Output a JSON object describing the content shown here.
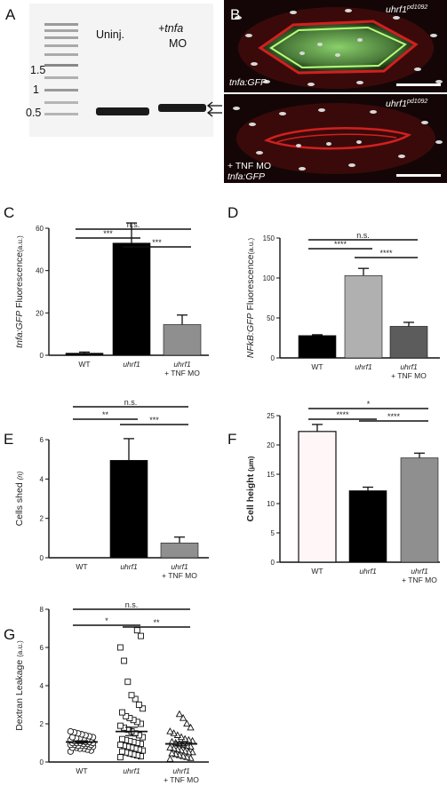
{
  "panels": {
    "A": {
      "label": "A",
      "lanes": [
        "Uninj.",
        "+tnfa",
        "MO"
      ],
      "ladder_labels": [
        "1.5",
        "1",
        "0.5"
      ]
    },
    "B": {
      "label": "B",
      "top_genotype": "uhrf1",
      "top_superscript": "pd1092",
      "top_reporter": "tnfa:GFP",
      "bottom_genotype": "uhrf1",
      "bottom_superscript": "pd1092",
      "bottom_treatment": "+ TNF MO",
      "bottom_reporter": "tnfa:GFP"
    }
  },
  "chart_data": [
    {
      "panel": "C",
      "type": "bar",
      "categories": [
        "WT",
        "uhrf1",
        "uhrf1"
      ],
      "category_sub": [
        "",
        "",
        "+ TNF MO"
      ],
      "values": [
        1,
        53,
        14.5
      ],
      "errors": [
        0.5,
        9.5,
        4.5
      ],
      "colors": [
        "#000000",
        "#000000",
        "#8f8f8f"
      ],
      "ylabel_italic": "tnfa:GFP",
      "ylabel_rest": " Fluorescence",
      "ylabel_unit": "(a.u.)",
      "ylim": [
        0,
        60
      ],
      "yticks": [
        0,
        20,
        40,
        60
      ],
      "sig": [
        "***",
        "***",
        "n.s."
      ]
    },
    {
      "panel": "D",
      "type": "bar",
      "categories": [
        "WT",
        "uhrf1",
        "uhrf1"
      ],
      "category_sub": [
        "",
        "",
        "+ TNF MO"
      ],
      "values": [
        28,
        103,
        39.5
      ],
      "errors": [
        1,
        9,
        5
      ],
      "colors": [
        "#000000",
        "#b0b0b0",
        "#5c5c5c"
      ],
      "ylabel_italic": "NFkB:GFP",
      "ylabel_rest": " Fluorescence",
      "ylabel_unit": "(a.u.)",
      "ylim": [
        0,
        150
      ],
      "yticks": [
        0,
        50,
        100,
        150
      ],
      "sig": [
        "****",
        "****",
        "n.s."
      ]
    },
    {
      "panel": "E",
      "type": "bar",
      "categories": [
        "WT",
        "uhrf1",
        "uhrf1"
      ],
      "category_sub": [
        "",
        "",
        "+ TNF MO"
      ],
      "values": [
        0,
        4.95,
        0.75
      ],
      "errors": [
        0,
        1.1,
        0.3
      ],
      "colors": [
        "#000000",
        "#000000",
        "#8f8f8f"
      ],
      "ylabel_italic": "",
      "ylabel_rest": "Cells shed ",
      "ylabel_unit": "(n)",
      "ylim": [
        0,
        6
      ],
      "yticks": [
        0,
        2,
        4,
        6
      ],
      "sig": [
        "**",
        "***",
        "n.s."
      ]
    },
    {
      "panel": "F",
      "type": "bar",
      "categories": [
        "WT",
        "uhrf1",
        "uhrf1"
      ],
      "category_sub": [
        "",
        "",
        "+ TNF MO"
      ],
      "values": [
        22.3,
        12.2,
        17.8
      ],
      "errors": [
        1.2,
        0.6,
        0.8
      ],
      "colors": [
        "#fff7f7",
        "#000000",
        "#8f8f8f"
      ],
      "ylabel_italic": "",
      "ylabel_rest": "Cell height ",
      "ylabel_unit": "(μm)",
      "ylim": [
        0,
        25
      ],
      "yticks": [
        0,
        5,
        10,
        15,
        20,
        25
      ],
      "sig": [
        "****",
        "****",
        "*"
      ]
    },
    {
      "panel": "G",
      "type": "scatter",
      "categories": [
        "WT",
        "uhrf1",
        "uhrf1"
      ],
      "category_sub": [
        "",
        "",
        "+ TNF MO"
      ],
      "markers": [
        "circle",
        "square",
        "triangle"
      ],
      "means": [
        1.05,
        1.6,
        0.95
      ],
      "sems": [
        0.06,
        0.22,
        0.1
      ],
      "points": [
        [
          0.55,
          0.6,
          0.65,
          0.7,
          0.7,
          0.75,
          0.75,
          0.8,
          0.8,
          0.85,
          0.85,
          0.85,
          0.9,
          0.9,
          0.9,
          0.95,
          0.95,
          1.0,
          1.0,
          1.0,
          1.0,
          1.05,
          1.05,
          1.1,
          1.1,
          1.1,
          1.15,
          1.15,
          1.2,
          1.2,
          1.25,
          1.25,
          1.3,
          1.3,
          1.35,
          1.4,
          1.45,
          1.5,
          1.55,
          1.6
        ],
        [
          0.25,
          0.3,
          0.35,
          0.4,
          0.45,
          0.5,
          0.55,
          0.6,
          0.65,
          0.7,
          0.75,
          0.8,
          0.85,
          0.9,
          0.95,
          1.0,
          1.05,
          1.1,
          1.15,
          1.2,
          1.3,
          1.4,
          1.5,
          1.6,
          1.7,
          1.8,
          1.9,
          2.0,
          2.1,
          2.2,
          2.3,
          2.4,
          2.6,
          2.8,
          3.0,
          3.3,
          3.5,
          4.2,
          5.3,
          6.0,
          6.6,
          6.9
        ],
        [
          0.15,
          0.2,
          0.25,
          0.3,
          0.35,
          0.4,
          0.45,
          0.5,
          0.5,
          0.55,
          0.6,
          0.65,
          0.7,
          0.75,
          0.8,
          0.85,
          0.9,
          0.95,
          1.0,
          1.05,
          1.1,
          1.15,
          1.2,
          1.3,
          1.4,
          1.5,
          1.6,
          1.8,
          2.0,
          2.3,
          2.5
        ]
      ],
      "ylabel_italic": "",
      "ylabel_rest": "Dextran Leakage ",
      "ylabel_unit": "(a.u.)",
      "ylim": [
        0,
        8
      ],
      "yticks": [
        0,
        2,
        4,
        6,
        8
      ],
      "sig": [
        "*",
        "**",
        "n.s."
      ]
    }
  ]
}
